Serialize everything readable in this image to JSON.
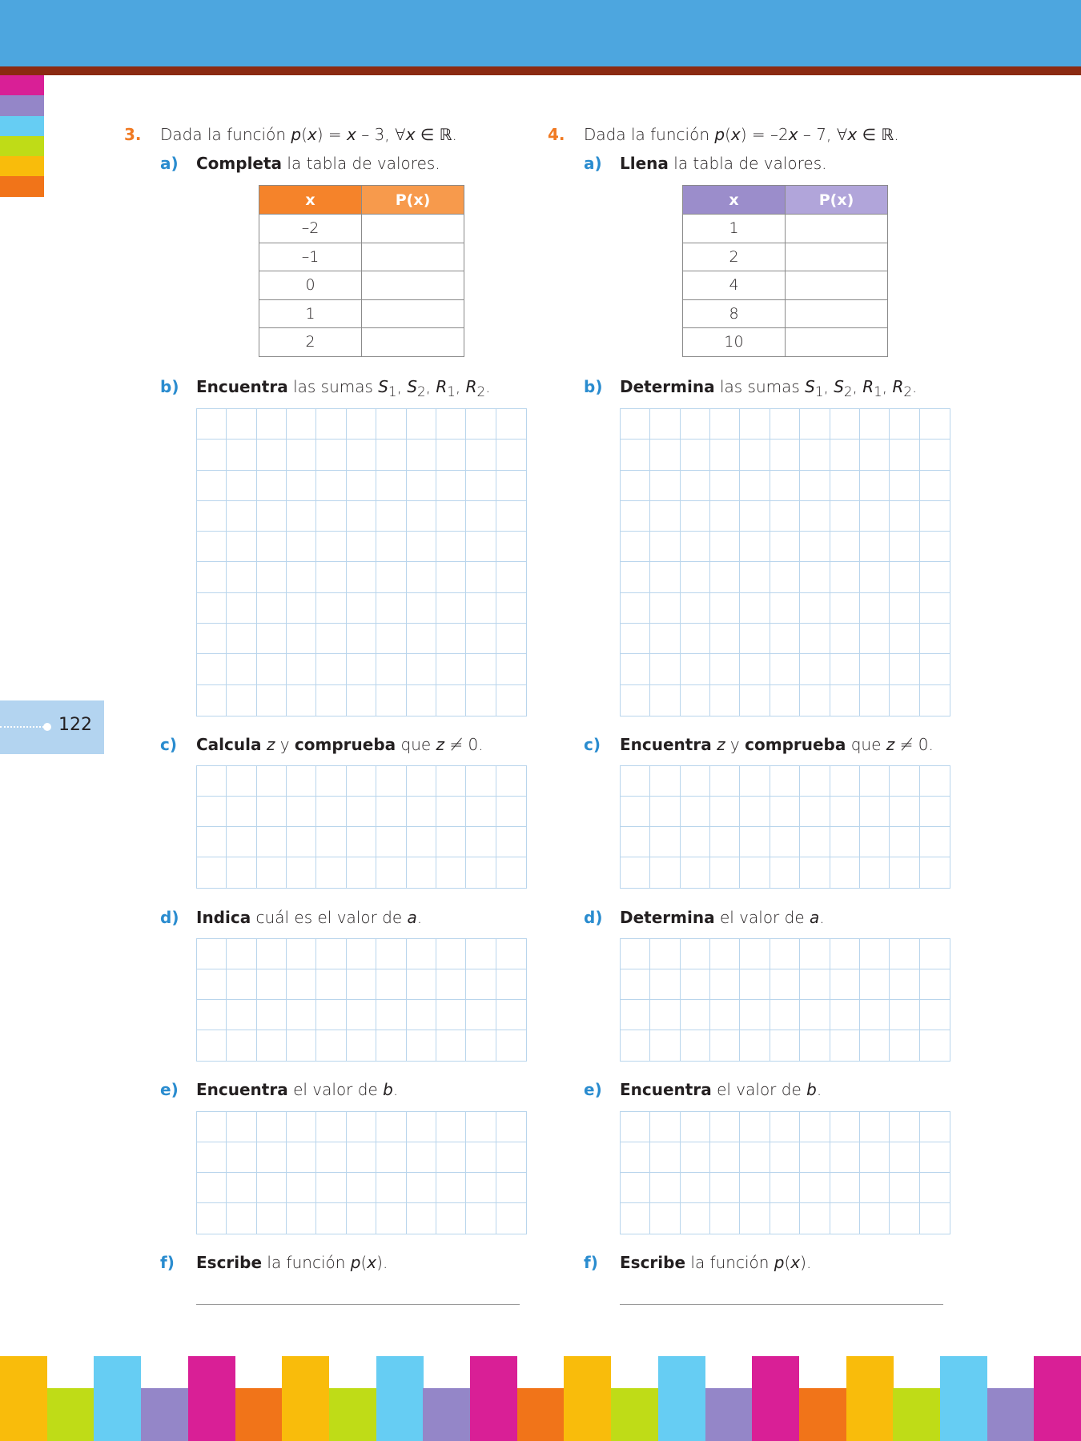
{
  "page_number": "122",
  "colors": {
    "header_blue": "#4da6df",
    "header_brown": "#8b2a12",
    "side_tabs": [
      "#d91f96",
      "#9486c8",
      "#66cdf3",
      "#bfdc17",
      "#f9bc0b",
      "#f17419"
    ],
    "footer_pattern": [
      "#f9bc0b",
      "#bfdc17",
      "#66cdf3",
      "#9486c8",
      "#d91f96",
      "#f17419"
    ],
    "number_orange": "#f07a22",
    "label_blue": "#2a8ccf",
    "grid_line": "#b9d5ec"
  },
  "exercises": [
    {
      "number": "3.",
      "statement": [
        {
          "t": "Dada la función ",
          "s": ""
        },
        {
          "t": "p",
          "s": "i"
        },
        {
          "t": "(",
          "s": ""
        },
        {
          "t": "x",
          "s": "i"
        },
        {
          "t": ") = ",
          "s": ""
        },
        {
          "t": "x",
          "s": "i"
        },
        {
          "t": " – 3,  ∀",
          "s": ""
        },
        {
          "t": "x",
          "s": "i"
        },
        {
          "t": " ∈ ℝ.",
          "s": ""
        }
      ],
      "table": {
        "headers": [
          "x",
          "P(x)"
        ],
        "header_colors": [
          "#f5832a",
          "#f79a4c"
        ],
        "x_values": [
          "–2",
          "–1",
          "0",
          "1",
          "2"
        ]
      },
      "parts": [
        {
          "label": "a)",
          "text": [
            {
              "t": "Completa",
              "s": "b"
            },
            {
              "t": " la tabla de valores.",
              "s": ""
            }
          ]
        },
        {
          "label": "b)",
          "text": [
            {
              "t": "Encuentra",
              "s": "b"
            },
            {
              "t": " las sumas ",
              "s": ""
            },
            {
              "t": "S",
              "s": "sub",
              "sub": "1"
            },
            {
              "t": ", ",
              "s": ""
            },
            {
              "t": "S",
              "s": "sub",
              "sub": "2"
            },
            {
              "t": ", ",
              "s": ""
            },
            {
              "t": "R",
              "s": "sub",
              "sub": "1"
            },
            {
              "t": ", ",
              "s": ""
            },
            {
              "t": "R",
              "s": "sub",
              "sub": "2"
            },
            {
              "t": ".",
              "s": ""
            }
          ]
        },
        {
          "label": "c)",
          "text": [
            {
              "t": "Calcula",
              "s": "b"
            },
            {
              "t": " ",
              "s": ""
            },
            {
              "t": "z",
              "s": "i"
            },
            {
              "t": " y ",
              "s": ""
            },
            {
              "t": "comprueba",
              "s": "b"
            },
            {
              "t": " que ",
              "s": ""
            },
            {
              "t": "z",
              "s": "i"
            },
            {
              "t": " ≠ 0.",
              "s": ""
            }
          ]
        },
        {
          "label": "d)",
          "text": [
            {
              "t": "Indica",
              "s": "b"
            },
            {
              "t": " cuál es el valor de ",
              "s": ""
            },
            {
              "t": "a",
              "s": "i"
            },
            {
              "t": ".",
              "s": ""
            }
          ]
        },
        {
          "label": "e)",
          "text": [
            {
              "t": "Encuentra",
              "s": "b"
            },
            {
              "t": " el valor de ",
              "s": ""
            },
            {
              "t": "b",
              "s": "i"
            },
            {
              "t": ".",
              "s": ""
            }
          ]
        },
        {
          "label": "f)",
          "text": [
            {
              "t": "Escribe",
              "s": "b"
            },
            {
              "t": " la función ",
              "s": ""
            },
            {
              "t": "p",
              "s": "i"
            },
            {
              "t": "(",
              "s": ""
            },
            {
              "t": "x",
              "s": "i"
            },
            {
              "t": ").",
              "s": ""
            }
          ]
        }
      ]
    },
    {
      "number": "4.",
      "statement": [
        {
          "t": "Dada la función ",
          "s": ""
        },
        {
          "t": "p",
          "s": "i"
        },
        {
          "t": "(",
          "s": ""
        },
        {
          "t": "x",
          "s": "i"
        },
        {
          "t": ") = –2",
          "s": ""
        },
        {
          "t": "x",
          "s": "i"
        },
        {
          "t": " – 7,  ∀",
          "s": ""
        },
        {
          "t": "x",
          "s": "i"
        },
        {
          "t": " ∈ ℝ.",
          "s": ""
        }
      ],
      "table": {
        "headers": [
          "x",
          "P(x)"
        ],
        "header_colors": [
          "#9b8dcb",
          "#b1a5da"
        ],
        "x_values": [
          "1",
          "2",
          "4",
          "8",
          "10"
        ]
      },
      "parts": [
        {
          "label": "a)",
          "text": [
            {
              "t": "Llena",
              "s": "b"
            },
            {
              "t": " la tabla de valores.",
              "s": ""
            }
          ]
        },
        {
          "label": "b)",
          "text": [
            {
              "t": "Determina",
              "s": "b"
            },
            {
              "t": " las sumas ",
              "s": ""
            },
            {
              "t": "S",
              "s": "sub",
              "sub": "1"
            },
            {
              "t": ", ",
              "s": ""
            },
            {
              "t": "S",
              "s": "sub",
              "sub": "2"
            },
            {
              "t": ", ",
              "s": ""
            },
            {
              "t": "R",
              "s": "sub",
              "sub": "1"
            },
            {
              "t": ", ",
              "s": ""
            },
            {
              "t": "R",
              "s": "sub",
              "sub": "2"
            },
            {
              "t": ".",
              "s": ""
            }
          ]
        },
        {
          "label": "c)",
          "text": [
            {
              "t": "Encuentra",
              "s": "b"
            },
            {
              "t": " ",
              "s": ""
            },
            {
              "t": "z",
              "s": "i"
            },
            {
              "t": " y ",
              "s": ""
            },
            {
              "t": "comprueba",
              "s": "b"
            },
            {
              "t": " que ",
              "s": ""
            },
            {
              "t": "z",
              "s": "i"
            },
            {
              "t": " ≠ 0.",
              "s": ""
            }
          ]
        },
        {
          "label": "d)",
          "text": [
            {
              "t": "Determina",
              "s": "b"
            },
            {
              "t": " el valor de ",
              "s": ""
            },
            {
              "t": "a",
              "s": "i"
            },
            {
              "t": ".",
              "s": ""
            }
          ]
        },
        {
          "label": "e)",
          "text": [
            {
              "t": "Encuentra",
              "s": "b"
            },
            {
              "t": " el valor de ",
              "s": ""
            },
            {
              "t": "b",
              "s": "i"
            },
            {
              "t": ".",
              "s": ""
            }
          ]
        },
        {
          "label": "f)",
          "text": [
            {
              "t": "Escribe",
              "s": "b"
            },
            {
              "t": " la función ",
              "s": ""
            },
            {
              "t": "p",
              "s": "i"
            },
            {
              "t": "(",
              "s": ""
            },
            {
              "t": "x",
              "s": "i"
            },
            {
              "t": ").",
              "s": ""
            }
          ]
        }
      ]
    }
  ]
}
